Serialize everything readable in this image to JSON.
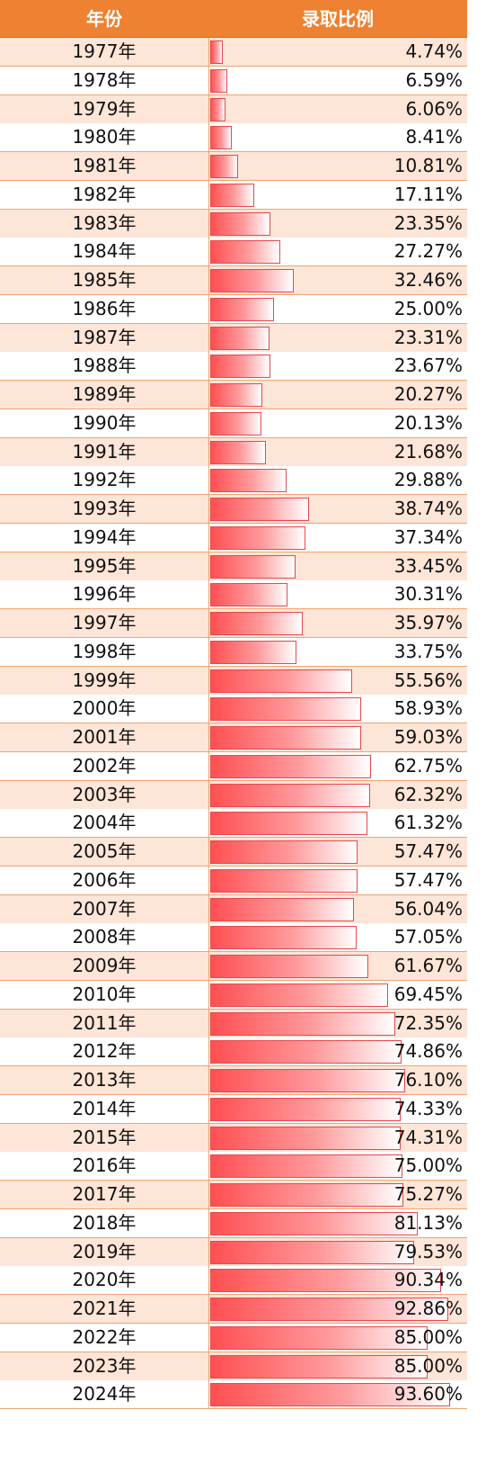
{
  "header": {
    "year_label": "年份",
    "rate_label": "录取比例"
  },
  "colors": {
    "header_bg": "#ee8232",
    "row_odd": "#fde5d7",
    "row_even": "#ffffff",
    "bar": "#ff4f52",
    "grid": "#f2a46e"
  },
  "chart_data": {
    "type": "bar",
    "orientation": "horizontal",
    "xlabel": "",
    "ylabel": "",
    "xlim": [
      0,
      100
    ],
    "unit": "%",
    "categories": [
      "1977年",
      "1978年",
      "1979年",
      "1980年",
      "1981年",
      "1982年",
      "1983年",
      "1984年",
      "1985年",
      "1986年",
      "1987年",
      "1988年",
      "1989年",
      "1990年",
      "1991年",
      "1992年",
      "1993年",
      "1994年",
      "1995年",
      "1996年",
      "1997年",
      "1998年",
      "1999年",
      "2000年",
      "2001年",
      "2002年",
      "2003年",
      "2004年",
      "2005年",
      "2006年",
      "2007年",
      "2008年",
      "2009年",
      "2010年",
      "2011年",
      "2012年",
      "2013年",
      "2014年",
      "2015年",
      "2016年",
      "2017年",
      "2018年",
      "2019年",
      "2020年",
      "2021年",
      "2022年",
      "2023年",
      "2024年"
    ],
    "values": [
      4.74,
      6.59,
      6.06,
      8.41,
      10.81,
      17.11,
      23.35,
      27.27,
      32.46,
      25.0,
      23.31,
      23.67,
      20.27,
      20.13,
      21.68,
      29.88,
      38.74,
      37.34,
      33.45,
      30.31,
      35.97,
      33.75,
      55.56,
      58.93,
      59.03,
      62.75,
      62.32,
      61.32,
      57.47,
      57.47,
      56.04,
      57.05,
      61.67,
      69.45,
      72.35,
      74.86,
      76.1,
      74.33,
      74.31,
      75.0,
      75.27,
      81.13,
      79.53,
      90.34,
      92.86,
      85.0,
      85.0,
      93.6
    ],
    "labels": [
      "4.74%",
      "6.59%",
      "6.06%",
      "8.41%",
      "10.81%",
      "17.11%",
      "23.35%",
      "27.27%",
      "32.46%",
      "25.00%",
      "23.31%",
      "23.67%",
      "20.27%",
      "20.13%",
      "21.68%",
      "29.88%",
      "38.74%",
      "37.34%",
      "33.45%",
      "30.31%",
      "35.97%",
      "33.75%",
      "55.56%",
      "58.93%",
      "59.03%",
      "62.75%",
      "62.32%",
      "61.32%",
      "57.47%",
      "57.47%",
      "56.04%",
      "57.05%",
      "61.67%",
      "69.45%",
      "72.35%",
      "74.86%",
      "76.10%",
      "74.33%",
      "74.31%",
      "75.00%",
      "75.27%",
      "81.13%",
      "79.53%",
      "90.34%",
      "92.86%",
      "85.00%",
      "85.00%",
      "93.60%"
    ]
  }
}
